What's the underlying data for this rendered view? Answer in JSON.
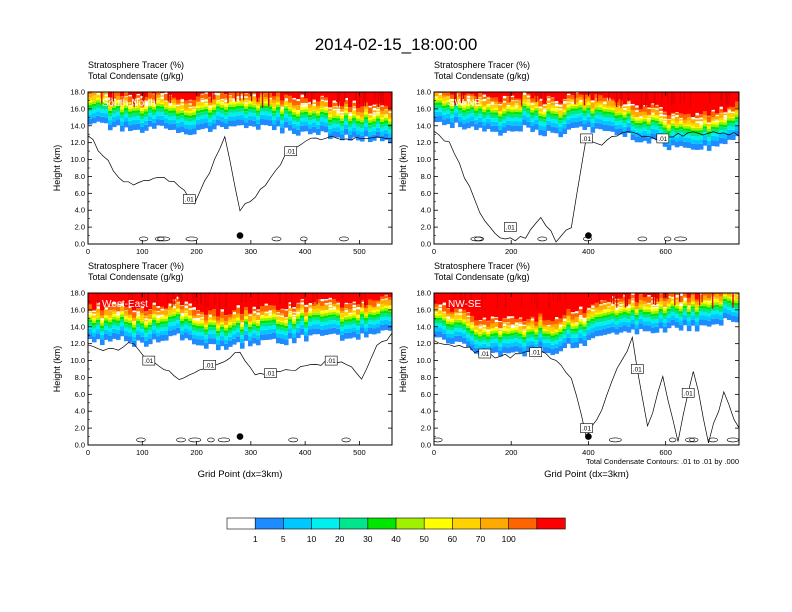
{
  "figure": {
    "title": "2014-02-15_18:00:00",
    "footnote": "Total Condensate Contours: .01 to .01 by .000"
  },
  "colorbar": {
    "levels": [
      "1",
      "5",
      "10",
      "20",
      "30",
      "40",
      "50",
      "60",
      "70",
      "100"
    ],
    "colors": [
      "#ffffff",
      "#1e8cff",
      "#00c8ff",
      "#00f0f0",
      "#00e68c",
      "#00e600",
      "#a0f000",
      "#ffff00",
      "#ffd200",
      "#ffaa00",
      "#ff6400",
      "#ff0000"
    ]
  },
  "chart_data": [
    {
      "type": "heatmap",
      "label": "South-North",
      "title_line1": "Stratosphere Tracer   (%)",
      "title_line2": "Total Condensate   (g/kg)",
      "ylabel": "Height (km)",
      "xlabel": "",
      "xlim": [
        0,
        560
      ],
      "xticks": [
        "0",
        "100",
        "200",
        "300",
        "400",
        "500"
      ],
      "ylim": [
        0,
        18
      ],
      "yticks": [
        "0.0",
        "2.0",
        "4.0",
        "6.0",
        "8.0",
        "10.0",
        "12.0",
        "14.0",
        "16.0",
        "18.0"
      ],
      "contour_labels": [
        ".01",
        ".01"
      ],
      "marker_x": 280,
      "marker_y": 1.0,
      "tracer_base_km": [
        14.5,
        14.0,
        13.6,
        13.2,
        13.5,
        13.8,
        13.4,
        13.2,
        13.6,
        13.8,
        14.0,
        13.8,
        13.6,
        13.4,
        13.2,
        13.0,
        12.8,
        12.6,
        12.4,
        12.2,
        12.0
      ],
      "condensate_top_km": [
        13.0,
        10.5,
        8.0,
        6.8,
        7.5,
        8.0,
        7.0,
        4.5,
        8.5,
        13.0,
        4.0,
        5.5,
        8.0,
        10.5,
        12.0,
        12.5,
        12.5,
        12.5,
        12.5,
        12.5,
        12.5
      ]
    },
    {
      "type": "heatmap",
      "label": "SW-NE",
      "title_line1": "Stratosphere Tracer   (%)",
      "title_line2": "Total Condensate   (g/kg)",
      "ylabel": "Height (km)",
      "xlabel": "",
      "xlim": [
        0,
        790
      ],
      "xticks": [
        "0",
        "200",
        "400",
        "600"
      ],
      "ylim": [
        0,
        18
      ],
      "yticks": [
        "0.0",
        "2.0",
        "4.0",
        "6.0",
        "8.0",
        "10.0",
        "12.0",
        "14.0",
        "16.0",
        "18.0"
      ],
      "contour_labels": [
        ".01",
        ".01",
        ".01"
      ],
      "marker_x": 400,
      "marker_y": 1.0,
      "tracer_base_km": [
        14.6,
        14.2,
        13.8,
        13.4,
        13.0,
        13.6,
        13.8,
        13.2,
        12.8,
        13.4,
        13.8,
        13.2,
        13.0,
        12.6,
        12.2,
        11.8,
        11.2,
        11.0,
        11.4,
        12.0,
        12.8
      ],
      "condensate_top_km": [
        13.5,
        12.0,
        8.0,
        4.0,
        1.0,
        0.5,
        0.8,
        3.0,
        0.5,
        2.0,
        12.5,
        12.0,
        13.0,
        13.0,
        12.5,
        12.5,
        13.0,
        13.0,
        13.0,
        13.0,
        13.0
      ]
    },
    {
      "type": "heatmap",
      "label": "West-East",
      "title_line1": "Stratosphere Tracer   (%)",
      "title_line2": "Total Condensate   (g/kg)",
      "ylabel": "Height (km)",
      "xlabel": "Grid Point (dx=3km)",
      "xlim": [
        0,
        560
      ],
      "xticks": [
        "0",
        "100",
        "200",
        "300",
        "400",
        "500"
      ],
      "ylim": [
        0,
        18
      ],
      "yticks": [
        "0.0",
        "2.0",
        "4.0",
        "6.0",
        "8.0",
        "10.0",
        "12.0",
        "14.0",
        "16.0",
        "18.0"
      ],
      "contour_labels": [
        ".01",
        ".01",
        ".01",
        ".01"
      ],
      "marker_x": 280,
      "marker_y": 1.0,
      "tracer_base_km": [
        12.4,
        12.2,
        12.8,
        12.0,
        11.8,
        12.6,
        12.8,
        12.2,
        11.6,
        11.4,
        11.8,
        12.0,
        12.4,
        12.2,
        12.6,
        12.8,
        13.0,
        12.6,
        12.8,
        13.2,
        13.6
      ],
      "condensate_top_km": [
        12.0,
        11.0,
        11.5,
        12.0,
        10.0,
        9.0,
        8.0,
        8.5,
        9.5,
        10.0,
        11.0,
        8.5,
        8.5,
        8.8,
        9.2,
        9.5,
        10.0,
        9.5,
        8.0,
        11.5,
        13.0
      ]
    },
    {
      "type": "heatmap",
      "label": "NW-SE",
      "title_line1": "Stratosphere Tracer   (%)",
      "title_line2": "Total Condensate   (g/kg)",
      "ylabel": "Height (km)",
      "xlabel": "Grid Point (dx=3km)",
      "xlim": [
        0,
        790
      ],
      "xticks": [
        "0",
        "200",
        "400",
        "600"
      ],
      "ylim": [
        0,
        18
      ],
      "yticks": [
        "0.0",
        "2.0",
        "4.0",
        "6.0",
        "8.0",
        "10.0",
        "12.0",
        "14.0",
        "16.0",
        "18.0"
      ],
      "contour_labels": [
        ".01",
        ".01",
        ".01",
        ".01",
        ".01"
      ],
      "marker_x": 400,
      "marker_y": 1.0,
      "tracer_base_km": [
        12.8,
        12.2,
        11.6,
        11.0,
        10.8,
        10.6,
        10.8,
        11.4,
        11.0,
        11.8,
        12.2,
        12.6,
        13.0,
        13.4,
        13.2,
        13.6,
        14.0,
        13.8,
        14.2,
        14.6,
        15.0
      ],
      "condensate_top_km": [
        12.5,
        12.0,
        11.5,
        11.0,
        10.5,
        10.5,
        11.0,
        11.0,
        10.0,
        8.0,
        1.0,
        4.0,
        9.0,
        12.5,
        2.0,
        8.0,
        0.5,
        9.0,
        0.5,
        6.0,
        2.0
      ]
    }
  ]
}
